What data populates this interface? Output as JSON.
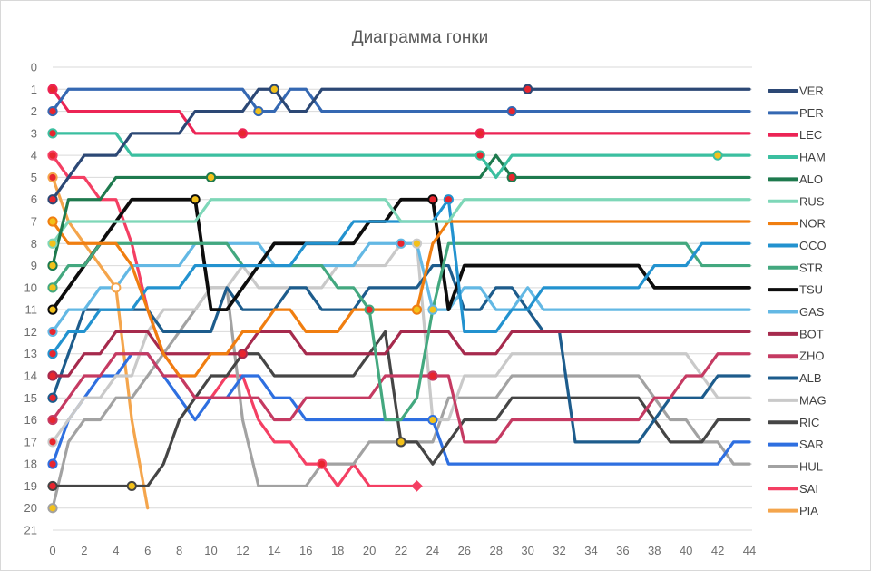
{
  "chart_data": {
    "type": "line",
    "variant": "race-position-bump-chart",
    "title": "Диаграмма гонки",
    "xlabel": "",
    "ylabel": "",
    "xlim": [
      0,
      44
    ],
    "ylim": [
      0,
      21
    ],
    "x_ticks": [
      0,
      2,
      4,
      6,
      8,
      10,
      12,
      14,
      16,
      18,
      20,
      22,
      24,
      26,
      28,
      30,
      32,
      34,
      36,
      38,
      40,
      42,
      44
    ],
    "y_ticks": [
      0,
      1,
      2,
      3,
      4,
      5,
      6,
      7,
      8,
      9,
      10,
      11,
      12,
      13,
      14,
      15,
      16,
      17,
      18,
      19,
      20,
      21
    ],
    "grid": "horizontal",
    "legend_position": "right",
    "tyre_colors": {
      "soft": "#e8252e",
      "medium": "#f3c11b",
      "hard": "#ffffff"
    },
    "series": [
      {
        "code": "VER",
        "color": "#2c4875",
        "start_tyre": "soft",
        "retired": false,
        "positions": [
          6,
          5,
          4,
          4,
          4,
          3,
          3,
          3,
          3,
          2,
          2,
          2,
          2,
          1,
          1,
          2,
          2,
          1,
          1,
          1,
          1,
          1,
          1,
          1,
          1,
          1,
          1,
          1,
          1,
          1,
          1,
          1,
          1,
          1,
          1,
          1,
          1,
          1,
          1,
          1,
          1,
          1,
          1,
          1,
          1
        ],
        "pit_markers": [
          {
            "lap": 14,
            "tyre": "medium"
          },
          {
            "lap": 30,
            "tyre": "soft"
          }
        ]
      },
      {
        "code": "PER",
        "color": "#3568b2",
        "start_tyre": "soft",
        "retired": false,
        "positions": [
          2,
          1,
          1,
          1,
          1,
          1,
          1,
          1,
          1,
          1,
          1,
          1,
          1,
          2,
          2,
          1,
          1,
          2,
          2,
          2,
          2,
          2,
          2,
          2,
          2,
          2,
          2,
          2,
          2,
          2,
          2,
          2,
          2,
          2,
          2,
          2,
          2,
          2,
          2,
          2,
          2,
          2,
          2,
          2,
          2
        ],
        "pit_markers": [
          {
            "lap": 13,
            "tyre": "medium"
          },
          {
            "lap": 29,
            "tyre": "soft"
          }
        ]
      },
      {
        "code": "LEC",
        "color": "#ec2455",
        "start_tyre": "soft",
        "retired": false,
        "positions": [
          1,
          2,
          2,
          2,
          2,
          2,
          2,
          2,
          2,
          3,
          3,
          3,
          3,
          3,
          3,
          3,
          3,
          3,
          3,
          3,
          3,
          3,
          3,
          3,
          3,
          3,
          3,
          3,
          3,
          3,
          3,
          3,
          3,
          3,
          3,
          3,
          3,
          3,
          3,
          3,
          3,
          3,
          3,
          3,
          3
        ],
        "pit_markers": [
          {
            "lap": 12,
            "tyre": "soft"
          },
          {
            "lap": 27,
            "tyre": "soft"
          }
        ]
      },
      {
        "code": "HAM",
        "color": "#3bbfa0",
        "start_tyre": "soft",
        "retired": false,
        "positions": [
          3,
          3,
          3,
          3,
          3,
          4,
          4,
          4,
          4,
          4,
          4,
          4,
          4,
          4,
          4,
          4,
          4,
          4,
          4,
          4,
          4,
          4,
          4,
          4,
          4,
          4,
          4,
          4,
          5,
          4,
          4,
          4,
          4,
          4,
          4,
          4,
          4,
          4,
          4,
          4,
          4,
          4,
          4,
          4,
          4
        ],
        "pit_markers": [
          {
            "lap": 27,
            "tyre": "soft"
          },
          {
            "lap": 42,
            "tyre": "medium"
          }
        ]
      },
      {
        "code": "ALO",
        "color": "#1e7a4e",
        "start_tyre": "medium",
        "retired": false,
        "positions": [
          9,
          6,
          6,
          6,
          5,
          5,
          5,
          5,
          5,
          5,
          5,
          5,
          5,
          5,
          5,
          5,
          5,
          5,
          5,
          5,
          5,
          5,
          5,
          5,
          5,
          5,
          5,
          5,
          4,
          5,
          5,
          5,
          5,
          5,
          5,
          5,
          5,
          5,
          5,
          5,
          5,
          5,
          5,
          5,
          5
        ],
        "pit_markers": [
          {
            "lap": 10,
            "tyre": "medium"
          },
          {
            "lap": 29,
            "tyre": "soft"
          }
        ]
      },
      {
        "code": "RUS",
        "color": "#7ed7b8",
        "start_tyre": "medium",
        "retired": false,
        "positions": [
          8,
          7,
          7,
          7,
          7,
          7,
          7,
          7,
          7,
          7,
          6,
          6,
          6,
          6,
          6,
          6,
          6,
          6,
          6,
          6,
          6,
          6,
          7,
          7,
          7,
          7,
          6,
          6,
          6,
          6,
          6,
          6,
          6,
          6,
          6,
          6,
          6,
          6,
          6,
          6,
          6,
          6,
          6,
          6,
          6
        ],
        "pit_markers": []
      },
      {
        "code": "NOR",
        "color": "#f07e10",
        "start_tyre": "medium",
        "retired": false,
        "positions": [
          7,
          8,
          8,
          8,
          8,
          9,
          11,
          13,
          14,
          14,
          13,
          13,
          12,
          12,
          11,
          11,
          12,
          12,
          12,
          11,
          11,
          11,
          11,
          11,
          8,
          7,
          7,
          7,
          7,
          7,
          7,
          7,
          7,
          7,
          7,
          7,
          7,
          7,
          7,
          7,
          7,
          7,
          7,
          7,
          7
        ],
        "pit_markers": [
          {
            "lap": 23,
            "tyre": "medium"
          }
        ]
      },
      {
        "code": "OCO",
        "color": "#2292cf",
        "start_tyre": "soft",
        "retired": false,
        "positions": [
          13,
          12,
          12,
          11,
          11,
          11,
          10,
          10,
          10,
          9,
          9,
          9,
          9,
          9,
          9,
          9,
          8,
          8,
          8,
          7,
          7,
          7,
          7,
          7,
          7,
          6,
          12,
          12,
          12,
          11,
          11,
          10,
          10,
          10,
          10,
          10,
          10,
          10,
          9,
          9,
          9,
          8,
          8,
          8,
          8
        ],
        "pit_markers": [
          {
            "lap": 25,
            "tyre": "soft"
          }
        ]
      },
      {
        "code": "STR",
        "color": "#43a87f",
        "start_tyre": "medium",
        "retired": false,
        "positions": [
          10,
          9,
          9,
          8,
          8,
          8,
          8,
          8,
          8,
          8,
          8,
          8,
          9,
          9,
          9,
          9,
          9,
          9,
          10,
          10,
          11,
          16,
          16,
          15,
          11,
          8,
          8,
          8,
          8,
          8,
          8,
          8,
          8,
          8,
          8,
          8,
          8,
          8,
          8,
          8,
          8,
          9,
          9,
          9,
          9
        ],
        "pit_markers": [
          {
            "lap": 20,
            "tyre": "soft"
          }
        ]
      },
      {
        "code": "TSU",
        "color": "#0d0d0d",
        "start_tyre": "medium",
        "retired": false,
        "positions": [
          11,
          10,
          9,
          8,
          7,
          6,
          6,
          6,
          6,
          6,
          11,
          11,
          10,
          9,
          8,
          8,
          8,
          8,
          8,
          8,
          7,
          7,
          6,
          6,
          6,
          11,
          9,
          9,
          9,
          9,
          9,
          9,
          9,
          9,
          9,
          9,
          9,
          9,
          10,
          10,
          10,
          10,
          10,
          10,
          10
        ],
        "pit_markers": [
          {
            "lap": 9,
            "tyre": "medium"
          },
          {
            "lap": 24,
            "tyre": "soft"
          }
        ]
      },
      {
        "code": "GAS",
        "color": "#63b8e4",
        "start_tyre": "soft",
        "retired": false,
        "positions": [
          12,
          11,
          11,
          10,
          10,
          9,
          9,
          9,
          9,
          8,
          8,
          8,
          8,
          8,
          9,
          9,
          9,
          9,
          9,
          9,
          8,
          8,
          8,
          8,
          11,
          11,
          10,
          10,
          11,
          11,
          10,
          11,
          11,
          11,
          11,
          11,
          11,
          11,
          11,
          11,
          11,
          11,
          11,
          11,
          11
        ],
        "pit_markers": [
          {
            "lap": 22,
            "tyre": "soft"
          },
          {
            "lap": 24,
            "tyre": "medium"
          }
        ]
      },
      {
        "code": "BOT",
        "color": "#a62a4d",
        "start_tyre": "soft",
        "retired": false,
        "positions": [
          14,
          14,
          13,
          13,
          12,
          12,
          12,
          13,
          13,
          13,
          13,
          13,
          13,
          12,
          12,
          12,
          13,
          13,
          13,
          13,
          13,
          13,
          12,
          12,
          12,
          12,
          13,
          13,
          13,
          12,
          12,
          12,
          12,
          12,
          12,
          12,
          12,
          12,
          12,
          12,
          12,
          12,
          12,
          12,
          12
        ],
        "pit_markers": [
          {
            "lap": 12,
            "tyre": "soft"
          }
        ]
      },
      {
        "code": "ZHO",
        "color": "#c53a62",
        "start_tyre": "soft",
        "retired": false,
        "positions": [
          16,
          15,
          14,
          14,
          13,
          13,
          13,
          14,
          14,
          15,
          15,
          15,
          15,
          15,
          16,
          16,
          15,
          15,
          15,
          15,
          15,
          14,
          14,
          14,
          14,
          14,
          17,
          17,
          17,
          16,
          16,
          16,
          16,
          16,
          16,
          16,
          16,
          16,
          15,
          15,
          14,
          14,
          13,
          13,
          13
        ],
        "pit_markers": [
          {
            "lap": 24,
            "tyre": "soft"
          }
        ]
      },
      {
        "code": "ALB",
        "color": "#1d5c8c",
        "start_tyre": "soft",
        "retired": false,
        "positions": [
          15,
          13,
          11,
          11,
          11,
          11,
          11,
          12,
          12,
          12,
          12,
          10,
          11,
          11,
          11,
          10,
          10,
          11,
          11,
          11,
          10,
          10,
          10,
          10,
          9,
          9,
          11,
          11,
          10,
          10,
          11,
          12,
          12,
          17,
          17,
          17,
          17,
          17,
          16,
          15,
          15,
          15,
          14,
          14,
          14
        ],
        "pit_markers": []
      },
      {
        "code": "MAG",
        "color": "#c9c9c9",
        "start_tyre": "soft",
        "retired": false,
        "positions": [
          17,
          16,
          15,
          15,
          14,
          14,
          12,
          11,
          11,
          11,
          10,
          10,
          9,
          10,
          10,
          10,
          10,
          10,
          9,
          9,
          9,
          9,
          8,
          8,
          16,
          16,
          14,
          14,
          14,
          13,
          13,
          13,
          13,
          13,
          13,
          13,
          13,
          13,
          13,
          13,
          13,
          14,
          15,
          15,
          15
        ],
        "pit_markers": [
          {
            "lap": 23,
            "tyre": "medium"
          }
        ]
      },
      {
        "code": "RIC",
        "color": "#454545",
        "start_tyre": "soft",
        "retired": false,
        "positions": [
          19,
          19,
          19,
          19,
          19,
          19,
          19,
          18,
          16,
          15,
          14,
          14,
          13,
          13,
          14,
          14,
          14,
          14,
          14,
          14,
          13,
          12,
          17,
          17,
          18,
          17,
          16,
          16,
          16,
          15,
          15,
          15,
          15,
          15,
          15,
          15,
          15,
          15,
          16,
          17,
          17,
          17,
          16,
          16,
          16
        ],
        "pit_markers": [
          {
            "lap": 5,
            "tyre": "medium"
          },
          {
            "lap": 22,
            "tyre": "medium"
          }
        ]
      },
      {
        "code": "SAR",
        "color": "#2e6fe0",
        "start_tyre": "soft",
        "retired": false,
        "positions": [
          18,
          16,
          15,
          14,
          14,
          13,
          13,
          14,
          15,
          16,
          15,
          15,
          14,
          14,
          15,
          15,
          16,
          16,
          16,
          16,
          16,
          16,
          16,
          16,
          16,
          18,
          18,
          18,
          18,
          18,
          18,
          18,
          18,
          18,
          18,
          18,
          18,
          18,
          18,
          18,
          18,
          18,
          18,
          17,
          17
        ],
        "pit_markers": [
          {
            "lap": 24,
            "tyre": "medium"
          }
        ]
      },
      {
        "code": "HUL",
        "color": "#a2a2a2",
        "start_tyre": "medium",
        "retired": false,
        "positions": [
          20,
          17,
          16,
          16,
          15,
          15,
          14,
          13,
          12,
          11,
          10,
          10,
          16,
          19,
          19,
          19,
          19,
          18,
          18,
          18,
          17,
          17,
          17,
          17,
          17,
          15,
          15,
          15,
          15,
          14,
          14,
          14,
          14,
          14,
          14,
          14,
          14,
          14,
          15,
          16,
          16,
          17,
          17,
          18,
          18
        ],
        "pit_markers": []
      },
      {
        "code": "SAI",
        "color": "#f43f63",
        "start_tyre": "soft",
        "retired": true,
        "positions": [
          4,
          5,
          5,
          6,
          6,
          8,
          11,
          13,
          14,
          15,
          15,
          14,
          14,
          16,
          17,
          17,
          18,
          18,
          19,
          18,
          19,
          19,
          19,
          19
        ],
        "pit_markers": [
          {
            "lap": 17,
            "tyre": "soft"
          }
        ]
      },
      {
        "code": "PIA",
        "color": "#f4a54c",
        "start_tyre": "soft",
        "retired": true,
        "positions": [
          5,
          7,
          8,
          9,
          10,
          16,
          20
        ],
        "pit_markers": [
          {
            "lap": 4,
            "tyre": "hard"
          }
        ]
      }
    ]
  }
}
